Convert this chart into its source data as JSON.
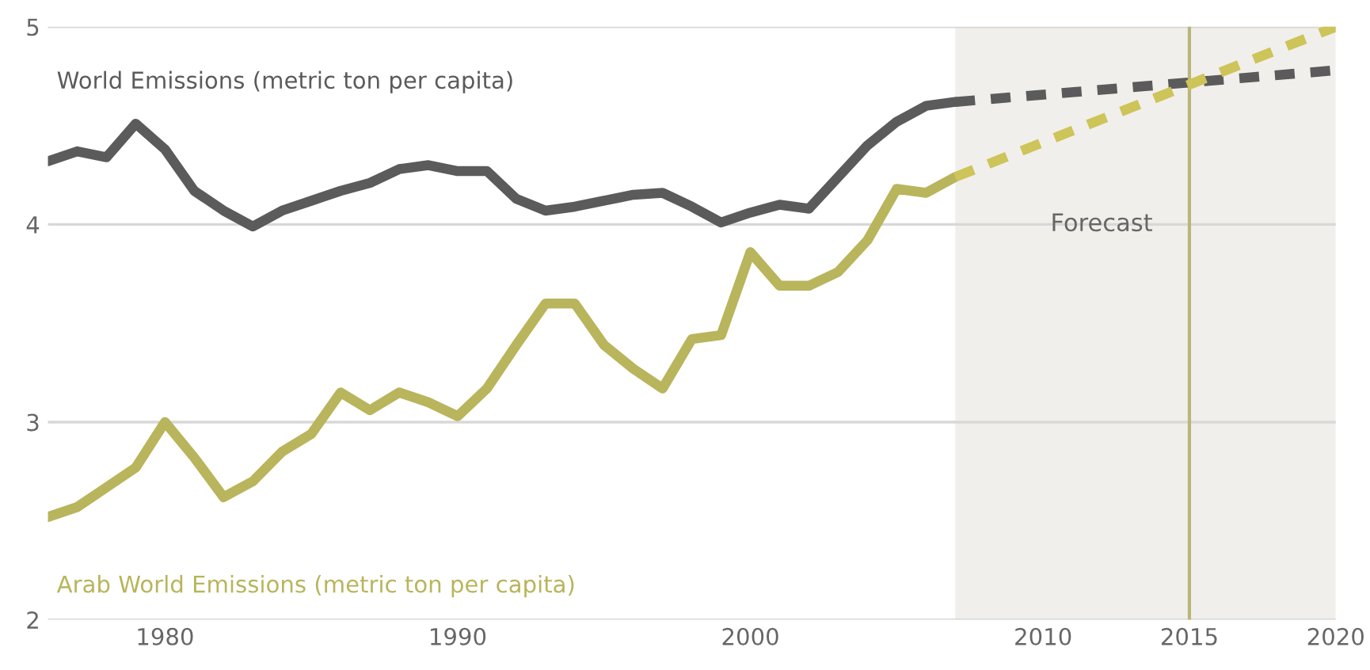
{
  "chart_data": {
    "type": "line",
    "series": [
      {
        "name": "World Emissions (metric ton per capita)",
        "color": "#5b5b5b",
        "line_style": "solid",
        "x": [
          1976,
          1977,
          1978,
          1979,
          1980,
          1981,
          1982,
          1983,
          1984,
          1985,
          1986,
          1987,
          1988,
          1989,
          1990,
          1991,
          1992,
          1993,
          1994,
          1995,
          1996,
          1997,
          1998,
          1999,
          2000,
          2001,
          2002,
          2003,
          2004,
          2005,
          2006,
          2007
        ],
        "values": [
          4.32,
          4.37,
          4.34,
          4.51,
          4.38,
          4.17,
          4.07,
          3.99,
          4.07,
          4.12,
          4.17,
          4.21,
          4.28,
          4.3,
          4.27,
          4.27,
          4.13,
          4.07,
          4.09,
          4.12,
          4.15,
          4.16,
          4.09,
          4.01,
          4.06,
          4.1,
          4.08,
          4.24,
          4.4,
          4.52,
          4.6,
          4.62
        ]
      },
      {
        "name": "Arab World Emissions (metric ton per capita)",
        "color": "#b8b55c",
        "line_style": "solid",
        "x": [
          1976,
          1977,
          1978,
          1979,
          1980,
          1981,
          1982,
          1983,
          1984,
          1985,
          1986,
          1987,
          1988,
          1989,
          1990,
          1991,
          1992,
          1993,
          1994,
          1995,
          1996,
          1997,
          1998,
          1999,
          2000,
          2001,
          2002,
          2003,
          2004,
          2005,
          2006,
          2007
        ],
        "values": [
          2.52,
          2.57,
          2.67,
          2.77,
          3.0,
          2.82,
          2.62,
          2.7,
          2.85,
          2.94,
          3.15,
          3.06,
          3.15,
          3.1,
          3.03,
          3.17,
          3.39,
          3.6,
          3.6,
          3.39,
          3.27,
          3.17,
          3.42,
          3.44,
          3.86,
          3.69,
          3.69,
          3.76,
          3.92,
          4.18,
          4.16,
          4.24
        ]
      },
      {
        "color": "#5b5b5b",
        "line_style": "dashed",
        "x": [
          2007,
          2020
        ],
        "values": [
          4.62,
          4.78
        ]
      },
      {
        "color": "#cdc45a",
        "line_style": "dashed",
        "x": [
          2007,
          2020
        ],
        "values": [
          4.24,
          5.0
        ]
      }
    ],
    "xlim": [
      1976,
      2020
    ],
    "xticks": [
      1980,
      1990,
      2000,
      2010,
      2015,
      2020
    ],
    "ylim": [
      2,
      5
    ],
    "yticks": [
      2,
      3,
      4,
      5
    ],
    "grid": "y",
    "legend": false,
    "bands": [
      {
        "axis": "x",
        "from": 2007,
        "to": 2020,
        "label": "Forecast",
        "color": "#f1efeb"
      }
    ],
    "ref_lines": [
      {
        "axis": "x",
        "value": 2015,
        "color": "#b8b67a",
        "line_style": "solid"
      }
    ]
  }
}
